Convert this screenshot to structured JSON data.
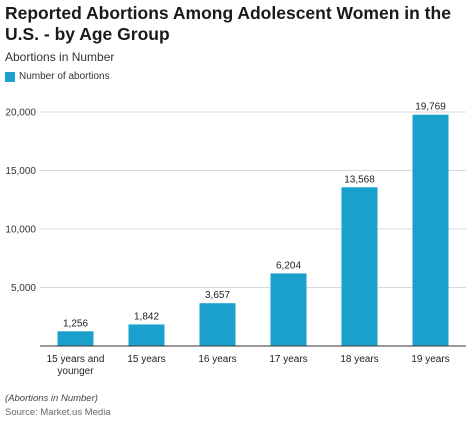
{
  "chart_data": {
    "type": "bar",
    "title": "Reported Abortions Among Adolescent Women in the U.S. - by Age Group",
    "subtitle": "Abortions in Number",
    "xlabel": "",
    "ylabel": "",
    "categories": [
      "15 years and younger",
      "15 years",
      "16 years",
      "17 years",
      "18 years",
      "19 years"
    ],
    "category_lines": [
      [
        "15 years and",
        "younger"
      ],
      [
        "15 years"
      ],
      [
        "16 years"
      ],
      [
        "17 years"
      ],
      [
        "18 years"
      ],
      [
        "19 years"
      ]
    ],
    "series": [
      {
        "name": "Number of abortions",
        "values": [
          1256,
          1842,
          3657,
          6204,
          13568,
          19769
        ],
        "color": "#1aa0cc"
      }
    ],
    "data_labels": [
      "1,256",
      "1,842",
      "3,657",
      "6,204",
      "13,568",
      "19,769"
    ],
    "yticks": [
      5000,
      10000,
      15000,
      20000
    ],
    "ytick_labels": [
      "5,000",
      "10,000",
      "15,000",
      "20,000"
    ],
    "ylim": [
      0,
      20000
    ],
    "grid": true,
    "legend_position": "top-left"
  },
  "footer": {
    "note": "(Abortions in Number)",
    "source": "Source: Market.us Media"
  }
}
